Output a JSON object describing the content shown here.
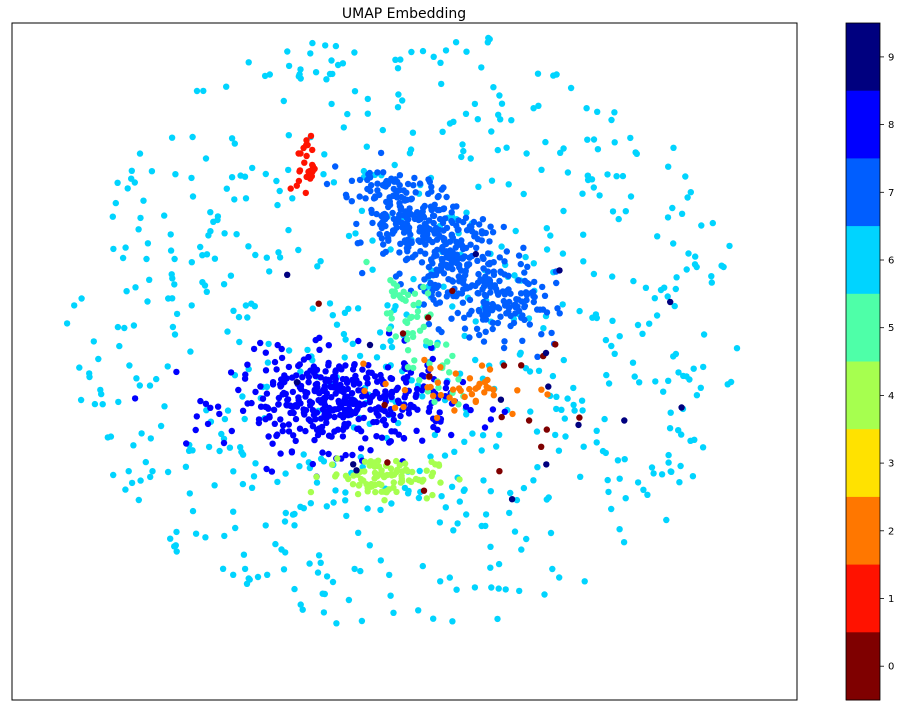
{
  "chart_data": {
    "type": "scatter",
    "title": "UMAP Embedding",
    "xlabel": "",
    "ylabel": "",
    "xlim": [
      0,
      100
    ],
    "ylim": [
      0,
      100
    ],
    "x_ticks_visible": false,
    "y_ticks_visible": false,
    "grid": false,
    "legend": "none",
    "colormap": "jet",
    "colorbar": {
      "ticks": [
        "0",
        "1",
        "2",
        "3",
        "4",
        "5",
        "6",
        "7",
        "8",
        "9"
      ],
      "colors": [
        "#7f0000",
        "#ff1200",
        "#ff7700",
        "#ffe200",
        "#a6ff4f",
        "#4effa8",
        "#00d4ff",
        "#005eff",
        "#0000ff",
        "#00007f"
      ],
      "placement": "right"
    },
    "classes": [
      {
        "label": "0",
        "color": "#7f0000"
      },
      {
        "label": "1",
        "color": "#ff1200"
      },
      {
        "label": "2",
        "color": "#ff7700"
      },
      {
        "label": "3",
        "color": "#ffe200"
      },
      {
        "label": "4",
        "color": "#a6ff4f"
      },
      {
        "label": "5",
        "color": "#4effa8"
      },
      {
        "label": "6",
        "color": "#00d4ff"
      },
      {
        "label": "7",
        "color": "#005eff"
      },
      {
        "label": "8",
        "color": "#0000ff"
      },
      {
        "label": "9",
        "color": "#00007f"
      }
    ],
    "clusters": [
      {
        "label": 6,
        "center": [
          50,
          55
        ],
        "spread": [
          24,
          28
        ],
        "count": 700,
        "shape": "scatter"
      },
      {
        "label": 7,
        "center": [
          55,
          73
        ],
        "spread": [
          7,
          5
        ],
        "count": 520,
        "shape": "diagonal",
        "from": [
          47,
          76
        ],
        "to": [
          63,
          57
        ]
      },
      {
        "label": 8,
        "center": [
          42,
          44
        ],
        "spread": [
          7,
          3.5
        ],
        "count": 420,
        "shape": "blob"
      },
      {
        "label": 4,
        "center": [
          47,
          33
        ],
        "spread": [
          3.5,
          1.5
        ],
        "count": 90,
        "shape": "blob"
      },
      {
        "label": 5,
        "center": [
          53,
          52
        ],
        "spread": [
          3,
          6
        ],
        "count": 60,
        "shape": "diagonal",
        "from": [
          49,
          60
        ],
        "to": [
          55,
          47
        ]
      },
      {
        "label": 2,
        "center": [
          57,
          46
        ],
        "spread": [
          5,
          2
        ],
        "count": 45,
        "shape": "blob"
      },
      {
        "label": 1,
        "center": [
          37.5,
          79
        ],
        "spread": [
          0.6,
          2.3
        ],
        "count": 28,
        "shape": "blob"
      },
      {
        "label": 0,
        "center": [
          55,
          48
        ],
        "spread": [
          12,
          12
        ],
        "count": 18,
        "shape": "scatter"
      },
      {
        "label": 9,
        "center": [
          58,
          50
        ],
        "spread": [
          16,
          16
        ],
        "count": 16,
        "shape": "scatter"
      }
    ]
  }
}
